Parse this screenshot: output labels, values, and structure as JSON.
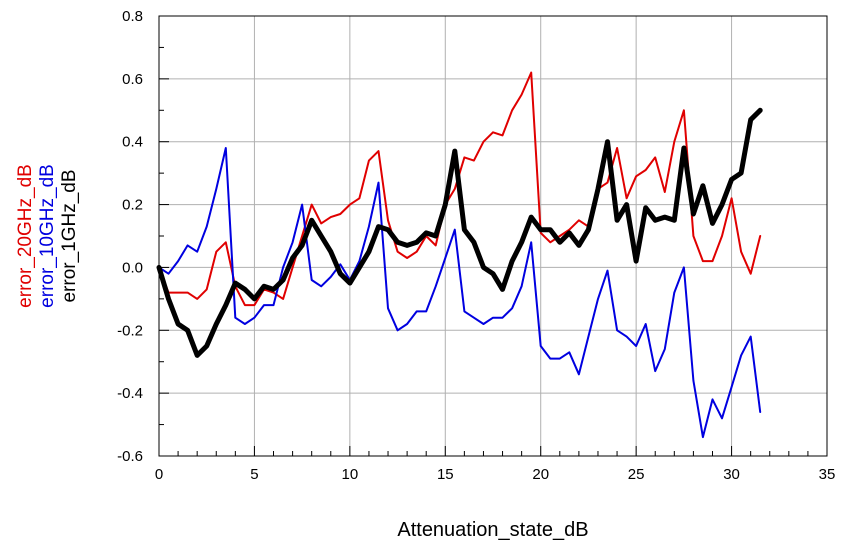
{
  "chart_data": {
    "type": "line",
    "title": "",
    "xlabel": "Attenuation_state_dB",
    "ylabel": "",
    "xlim": [
      0,
      35
    ],
    "ylim": [
      -0.6,
      0.8
    ],
    "x_ticks": [
      "0",
      "5",
      "10",
      "15",
      "20",
      "25",
      "30",
      "35"
    ],
    "y_ticks": [
      "-0.6",
      "-0.4",
      "-0.2",
      "0.0",
      "0.2",
      "0.4",
      "0.6",
      "0.8"
    ],
    "grid": true,
    "legend_placement": "left, vertical",
    "legend": [
      {
        "label": "error_20GHz_dB",
        "color": "#e00000"
      },
      {
        "label": "error_10GHz_dB",
        "color": "#0000e0"
      },
      {
        "label": "error_1GHz_dB",
        "color": "#000000"
      }
    ],
    "x": [
      0,
      0.5,
      1,
      1.5,
      2,
      2.5,
      3,
      3.5,
      4,
      4.5,
      5,
      5.5,
      6,
      6.5,
      7,
      7.5,
      8,
      8.5,
      9,
      9.5,
      10,
      10.5,
      11,
      11.5,
      12,
      12.5,
      13,
      13.5,
      14,
      14.5,
      15,
      15.5,
      16,
      16.5,
      17,
      17.5,
      18,
      18.5,
      19,
      19.5,
      20,
      20.5,
      21,
      21.5,
      22,
      22.5,
      23,
      23.5,
      24,
      24.5,
      25,
      25.5,
      26,
      26.5,
      27,
      27.5,
      28,
      28.5,
      29,
      29.5,
      30,
      30.5,
      31,
      31.5
    ],
    "series": [
      {
        "name": "error_20GHz_dB",
        "color": "#e00000",
        "values": [
          0.0,
          -0.08,
          -0.08,
          -0.08,
          -0.1,
          -0.07,
          0.05,
          0.08,
          -0.06,
          -0.12,
          -0.12,
          -0.07,
          -0.08,
          -0.1,
          0.0,
          0.1,
          0.2,
          0.14,
          0.16,
          0.17,
          0.2,
          0.22,
          0.34,
          0.37,
          0.15,
          0.05,
          0.03,
          0.05,
          0.1,
          0.07,
          0.2,
          0.25,
          0.35,
          0.34,
          0.4,
          0.43,
          0.42,
          0.5,
          0.55,
          0.62,
          0.11,
          0.08,
          0.1,
          0.12,
          0.15,
          0.13,
          0.25,
          0.27,
          0.38,
          0.22,
          0.29,
          0.31,
          0.35,
          0.24,
          0.4,
          0.5,
          0.1,
          0.02,
          0.02,
          0.1,
          0.22,
          0.05,
          -0.02,
          0.1
        ]
      },
      {
        "name": "error_10GHz_dB",
        "color": "#0000e0",
        "values": [
          0.0,
          -0.02,
          0.02,
          0.07,
          0.05,
          0.13,
          0.25,
          0.38,
          -0.16,
          -0.18,
          -0.16,
          -0.12,
          -0.12,
          0.0,
          0.08,
          0.2,
          -0.04,
          -0.06,
          -0.03,
          0.01,
          -0.04,
          0.02,
          0.13,
          0.27,
          -0.13,
          -0.2,
          -0.18,
          -0.14,
          -0.14,
          -0.06,
          0.03,
          0.12,
          -0.14,
          -0.16,
          -0.18,
          -0.16,
          -0.16,
          -0.13,
          -0.06,
          0.08,
          -0.25,
          -0.29,
          -0.29,
          -0.27,
          -0.34,
          -0.22,
          -0.1,
          -0.01,
          -0.2,
          -0.22,
          -0.25,
          -0.18,
          -0.33,
          -0.26,
          -0.08,
          0.0,
          -0.36,
          -0.54,
          -0.42,
          -0.48,
          -0.38,
          -0.28,
          -0.22,
          -0.46
        ]
      },
      {
        "name": "error_1GHz_dB",
        "color": "#000000",
        "values": [
          0.0,
          -0.1,
          -0.18,
          -0.2,
          -0.28,
          -0.25,
          -0.18,
          -0.12,
          -0.05,
          -0.07,
          -0.1,
          -0.06,
          -0.07,
          -0.04,
          0.03,
          0.07,
          0.15,
          0.1,
          0.05,
          -0.02,
          -0.05,
          0.0,
          0.05,
          0.13,
          0.12,
          0.08,
          0.07,
          0.08,
          0.11,
          0.1,
          0.2,
          0.37,
          0.12,
          0.08,
          0.0,
          -0.02,
          -0.07,
          0.02,
          0.08,
          0.16,
          0.12,
          0.12,
          0.08,
          0.11,
          0.07,
          0.12,
          0.25,
          0.4,
          0.15,
          0.2,
          0.02,
          0.19,
          0.15,
          0.16,
          0.15,
          0.38,
          0.17,
          0.26,
          0.14,
          0.2,
          0.28,
          0.3,
          0.47,
          0.5
        ]
      }
    ]
  },
  "colors": {
    "background": "#ffffff",
    "grid": "#b0b0b0",
    "axis": "#000000"
  }
}
